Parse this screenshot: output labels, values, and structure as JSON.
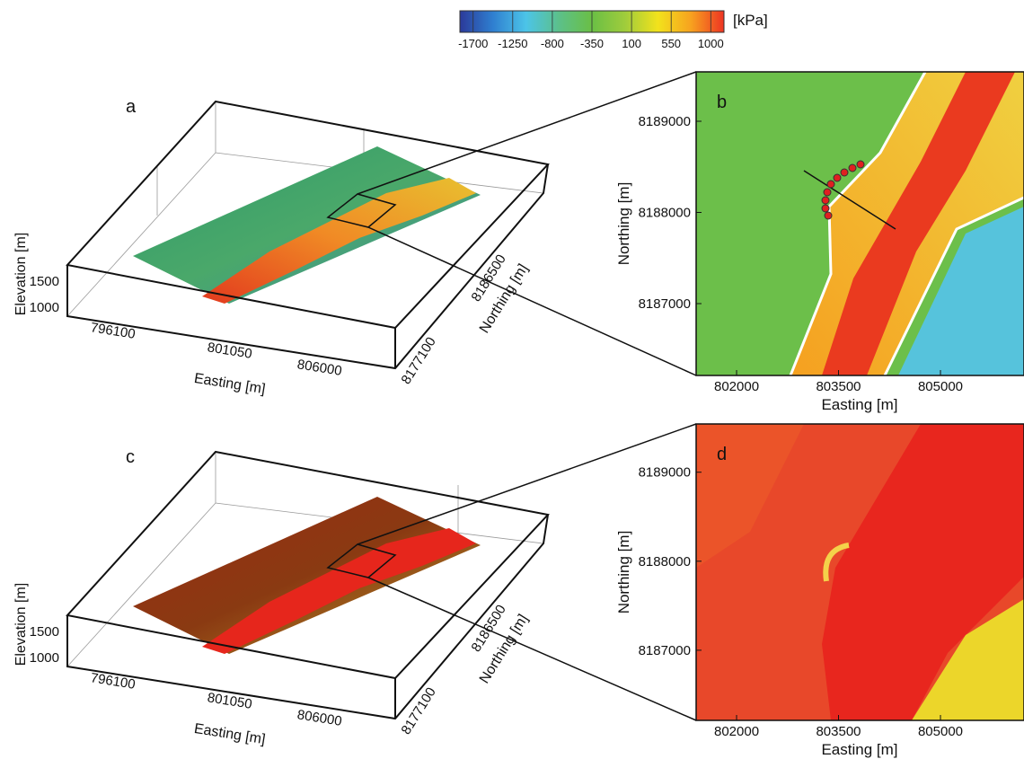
{
  "colorbar": {
    "ticks": [
      -1700,
      -1250,
      -800,
      -350,
      100,
      550,
      1000
    ],
    "clim": [
      -1850,
      1150
    ],
    "unit": "[kPa]",
    "colors": [
      "#2b3a9a",
      "#2f7fd0",
      "#4cc4e8",
      "#5cc08a",
      "#6abf45",
      "#9fcc3c",
      "#f2e21c",
      "#f7a21f",
      "#ee3423"
    ]
  },
  "panels": [
    {
      "label": "a",
      "zlabel": "Elevation [m]",
      "xlabel": "Easting [m]",
      "ylabel": "Northing [m]",
      "zticks": [
        1500,
        1000
      ],
      "xticks": [
        796100,
        801050,
        806000
      ],
      "yticks": [
        8186500,
        8177100
      ]
    },
    {
      "label": "b",
      "xlabel": "Easting [m]",
      "ylabel": "Northing [m]",
      "xlim": [
        801405,
        806229
      ],
      "ylim": [
        8186212,
        8189542
      ],
      "xticks": [
        802000,
        803500,
        805000
      ],
      "yticks": [
        8187000,
        8188000,
        8189000
      ]
    },
    {
      "label": "c",
      "zlabel": "Elevation [m]",
      "xlabel": "Easting [m]",
      "ylabel": "Northing [m]",
      "zticks": [
        1500,
        1000
      ],
      "xticks": [
        796100,
        801050,
        806000
      ],
      "yticks": [
        8186500,
        8177100
      ]
    },
    {
      "label": "d",
      "xlabel": "Easting [m]",
      "ylabel": "Northing [m]",
      "xlim": [
        801405,
        806229
      ],
      "ylim": [
        8186212,
        8189542
      ],
      "xticks": [
        802000,
        803500,
        805000
      ],
      "yticks": [
        8187000,
        8188000,
        8189000
      ]
    }
  ]
}
